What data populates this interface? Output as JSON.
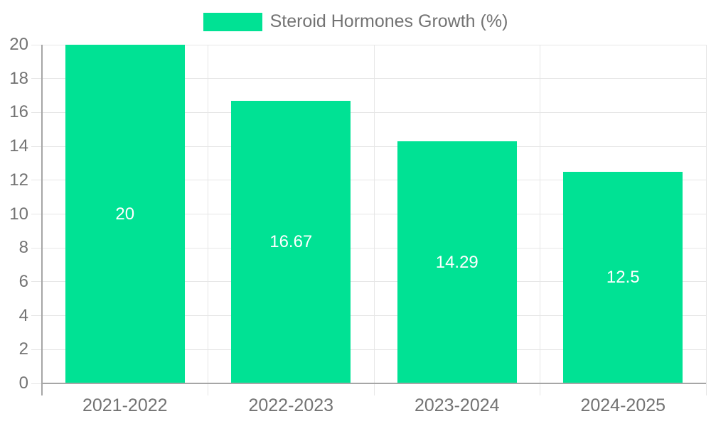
{
  "chart_data": {
    "type": "bar",
    "title": "",
    "xlabel": "",
    "ylabel": "",
    "legend": {
      "position": "top",
      "label": "Steroid Hormones Growth (%)"
    },
    "categories": [
      "2021-2022",
      "2022-2023",
      "2023-2024",
      "2024-2025"
    ],
    "series": [
      {
        "name": "Steroid Hormones Growth (%)",
        "values": [
          20,
          16.67,
          14.29,
          12.5
        ]
      }
    ],
    "value_labels": [
      "20",
      "16.67",
      "14.29",
      "12.5"
    ],
    "ylim": [
      0,
      20
    ],
    "ytick_step": 2,
    "yticks": [
      0,
      2,
      4,
      6,
      8,
      10,
      12,
      14,
      16,
      18,
      20
    ],
    "grid": true,
    "colors": {
      "bar": "#00e294",
      "value_label": "#ffffff",
      "axis_label": "#737373",
      "grid_line": "#e6e6e6",
      "tick_line": "#d6d6d6",
      "axis_line": "#a6a6a6",
      "background": "#ffffff"
    }
  }
}
